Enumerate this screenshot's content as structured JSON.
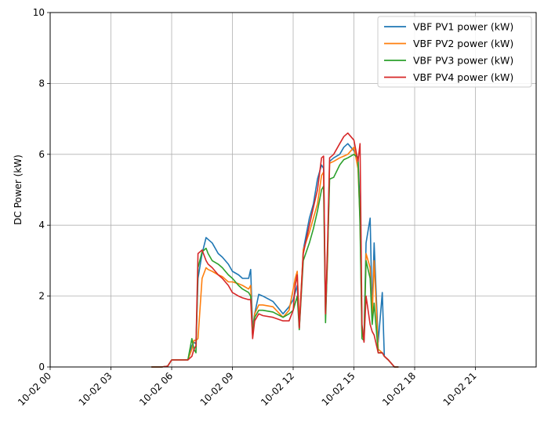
{
  "chart_data": {
    "type": "line",
    "title": "",
    "xlabel": "",
    "ylabel": "DC Power (kW)",
    "ylim": [
      0,
      10
    ],
    "xlim_hours": [
      0,
      24
    ],
    "grid": true,
    "legend_placement": "top-right",
    "y_ticks": [
      0,
      2,
      4,
      6,
      8,
      10
    ],
    "x_tick_hours": [
      0,
      3,
      6,
      9,
      12,
      15,
      18,
      21
    ],
    "x_tick_labels": [
      "10-02 00",
      "10-02 03",
      "10-02 06",
      "10-02 09",
      "10-02 12",
      "10-02 15",
      "10-02 18",
      "10-02 21"
    ],
    "series": [
      {
        "name": "VBF PV1 power (kW)",
        "color": "#1f77b4",
        "x": [
          5.0,
          5.5,
          5.8,
          6.0,
          6.5,
          6.8,
          7.0,
          7.1,
          7.2,
          7.3,
          7.5,
          7.7,
          7.8,
          8.0,
          8.3,
          8.5,
          8.8,
          9.0,
          9.3,
          9.5,
          9.8,
          9.9,
          10.0,
          10.1,
          10.3,
          10.5,
          11.0,
          11.5,
          11.8,
          12.0,
          12.1,
          12.2,
          12.3,
          12.5,
          12.8,
          13.0,
          13.2,
          13.4,
          13.5,
          13.6,
          13.7,
          13.8,
          14.0,
          14.3,
          14.5,
          14.7,
          15.0,
          15.1,
          15.2,
          15.3,
          15.4,
          15.5,
          15.6,
          15.8,
          15.9,
          16.0,
          16.2,
          16.4,
          16.5,
          16.7,
          17.0,
          17.2
        ],
        "y": [
          0,
          0,
          0.02,
          0.2,
          0.2,
          0.2,
          0.6,
          0.7,
          0.65,
          2.5,
          3.2,
          3.65,
          3.6,
          3.5,
          3.2,
          3.1,
          2.9,
          2.7,
          2.6,
          2.5,
          2.5,
          2.75,
          1.1,
          1.5,
          2.05,
          2.0,
          1.85,
          1.5,
          1.7,
          1.9,
          2.1,
          2.3,
          1.1,
          3.3,
          4.2,
          4.6,
          5.3,
          5.7,
          5.6,
          1.5,
          3.2,
          5.8,
          5.9,
          6.0,
          6.2,
          6.3,
          6.1,
          6.0,
          5.9,
          4.5,
          1.0,
          0.9,
          3.5,
          4.2,
          1.5,
          3.5,
          0.7,
          2.1,
          0.3,
          0.2,
          0,
          0
        ]
      },
      {
        "name": "VBF PV2 power (kW)",
        "color": "#ff7f0e",
        "x": [
          5.0,
          5.5,
          5.8,
          6.0,
          6.5,
          6.8,
          7.0,
          7.1,
          7.2,
          7.3,
          7.5,
          7.7,
          7.8,
          8.0,
          8.3,
          8.5,
          8.8,
          9.0,
          9.3,
          9.5,
          9.8,
          9.9,
          10.0,
          10.1,
          10.3,
          10.5,
          11.0,
          11.5,
          11.8,
          12.0,
          12.1,
          12.2,
          12.3,
          12.5,
          12.8,
          13.0,
          13.2,
          13.4,
          13.5,
          13.6,
          13.7,
          13.8,
          14.0,
          14.3,
          14.5,
          14.7,
          15.0,
          15.1,
          15.2,
          15.3,
          15.4,
          15.5,
          15.6,
          15.8,
          15.9,
          16.0,
          16.2,
          16.4,
          16.5,
          16.7,
          17.0,
          17.2
        ],
        "y": [
          0,
          0,
          0.02,
          0.2,
          0.2,
          0.2,
          0.5,
          0.75,
          0.75,
          0.8,
          2.5,
          2.8,
          2.75,
          2.7,
          2.6,
          2.55,
          2.4,
          2.4,
          2.35,
          2.3,
          2.2,
          2.3,
          0.9,
          1.5,
          1.75,
          1.75,
          1.7,
          1.4,
          1.6,
          2.2,
          2.5,
          2.7,
          1.2,
          3.3,
          3.8,
          4.2,
          4.6,
          5.4,
          5.5,
          1.5,
          3.0,
          5.75,
          5.8,
          5.9,
          5.95,
          6.0,
          6.2,
          5.9,
          5.6,
          4.2,
          0.9,
          0.8,
          3.2,
          2.8,
          1.4,
          3.0,
          0.5,
          0.4,
          0.3,
          0.2,
          0,
          0
        ]
      },
      {
        "name": "VBF PV3 power (kW)",
        "color": "#2ca02c",
        "x": [
          5.0,
          5.5,
          5.8,
          6.0,
          6.5,
          6.8,
          7.0,
          7.1,
          7.2,
          7.3,
          7.5,
          7.7,
          7.8,
          8.0,
          8.3,
          8.5,
          8.8,
          9.0,
          9.3,
          9.5,
          9.8,
          9.9,
          10.0,
          10.1,
          10.3,
          10.5,
          11.0,
          11.5,
          11.8,
          12.0,
          12.1,
          12.2,
          12.3,
          12.5,
          12.8,
          13.0,
          13.2,
          13.4,
          13.5,
          13.6,
          13.7,
          13.8,
          14.0,
          14.3,
          14.5,
          14.7,
          15.0,
          15.1,
          15.2,
          15.3,
          15.4,
          15.5,
          15.6,
          15.8,
          15.9,
          16.0,
          16.2,
          16.4,
          16.5,
          16.7,
          17.0,
          17.2
        ],
        "y": [
          0,
          0,
          0.02,
          0.2,
          0.2,
          0.2,
          0.8,
          0.5,
          0.4,
          2.8,
          3.25,
          3.35,
          3.2,
          3.0,
          2.9,
          2.8,
          2.6,
          2.5,
          2.3,
          2.2,
          2.1,
          2.0,
          0.9,
          1.4,
          1.6,
          1.6,
          1.55,
          1.4,
          1.5,
          1.6,
          1.8,
          2.0,
          1.05,
          3.0,
          3.5,
          3.9,
          4.4,
          5.0,
          5.1,
          1.25,
          3.2,
          5.3,
          5.35,
          5.7,
          5.85,
          5.9,
          6.0,
          5.95,
          5.9,
          4.0,
          0.8,
          0.75,
          3.0,
          2.5,
          1.2,
          1.8,
          0.4,
          0.4,
          0.3,
          0.2,
          0,
          0
        ]
      },
      {
        "name": "VBF PV4 power (kW)",
        "color": "#d62728",
        "x": [
          5.0,
          5.5,
          5.8,
          6.0,
          6.5,
          6.8,
          7.0,
          7.1,
          7.2,
          7.3,
          7.5,
          7.7,
          7.8,
          8.0,
          8.3,
          8.5,
          8.8,
          9.0,
          9.3,
          9.5,
          9.8,
          9.9,
          10.0,
          10.1,
          10.3,
          10.5,
          11.0,
          11.5,
          11.8,
          12.0,
          12.1,
          12.2,
          12.3,
          12.5,
          12.8,
          13.0,
          13.2,
          13.4,
          13.5,
          13.6,
          13.7,
          13.8,
          14.0,
          14.3,
          14.5,
          14.7,
          15.0,
          15.1,
          15.2,
          15.3,
          15.4,
          15.5,
          15.6,
          15.8,
          15.9,
          16.0,
          16.2,
          16.4,
          16.5,
          16.7,
          17.0,
          17.2
        ],
        "y": [
          0,
          0,
          0.02,
          0.2,
          0.2,
          0.2,
          0.3,
          0.5,
          0.6,
          3.2,
          3.3,
          3.0,
          2.9,
          2.8,
          2.6,
          2.5,
          2.3,
          2.1,
          2.0,
          1.95,
          1.9,
          1.9,
          0.8,
          1.3,
          1.5,
          1.45,
          1.4,
          1.3,
          1.3,
          1.6,
          2.3,
          2.6,
          1.1,
          3.2,
          4.0,
          4.5,
          5.0,
          5.9,
          5.95,
          1.5,
          3.5,
          5.9,
          6.0,
          6.3,
          6.5,
          6.6,
          6.4,
          6.1,
          5.8,
          6.3,
          1.2,
          0.7,
          2.0,
          1.2,
          1.0,
          0.9,
          0.4,
          0.4,
          0.3,
          0.2,
          0,
          0
        ]
      }
    ]
  }
}
